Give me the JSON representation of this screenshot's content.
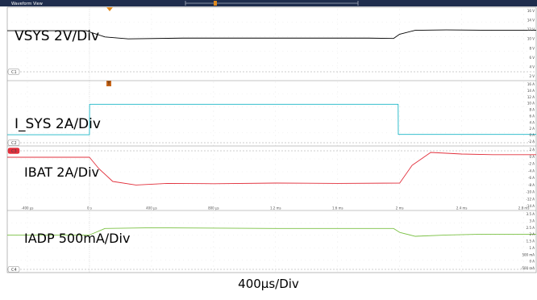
{
  "window": {
    "title": "Waveform View",
    "accent_color": "#1f2d4d"
  },
  "footer": {
    "time_per_div": "400µs/Div"
  },
  "time_axis": {
    "tick_labels": [
      "-400 µs",
      "0 s",
      "400 µs",
      "800 µs",
      "1.2 ms",
      "1.6 ms",
      "2 ms",
      "2.4 ms",
      "2.8 ms"
    ],
    "ticks_us": [
      -400,
      0,
      400,
      800,
      1200,
      1600,
      2000,
      2400,
      2800
    ],
    "range_us": [
      -530,
      2880
    ]
  },
  "chart_data": [
    {
      "type": "line",
      "title": "VSYS 2V/Div",
      "channel_tag": "C1",
      "color": "#000000",
      "y_scale_labels": [
        "16 V",
        "14 V",
        "12 V",
        "10 V",
        "8 V",
        "6 V",
        "4 V",
        "2 V"
      ],
      "ylim": [
        0,
        18
      ],
      "x": [
        -530,
        -20,
        0,
        100,
        250,
        600,
        1200,
        1800,
        1960,
        2000,
        2100,
        2300,
        2600,
        2880
      ],
      "series": [
        {
          "values": [
            12.4,
            12.4,
            12.1,
            10.8,
            10.3,
            10.5,
            10.5,
            10.5,
            10.4,
            11.5,
            12.5,
            12.6,
            12.5,
            12.5
          ]
        }
      ]
    },
    {
      "type": "line",
      "title": "I_SYS 2A/Div",
      "channel_tag": "C2",
      "color": "#19b6c6",
      "y_scale_labels": [
        "16 A",
        "14 A",
        "12 A",
        "10 A",
        "8 A",
        "6 A",
        "4 A",
        "2 A",
        "0 A",
        "-2 A"
      ],
      "ylim": [
        -3,
        17
      ],
      "x": [
        -530,
        0,
        1,
        1990,
        1991,
        2880
      ],
      "series": [
        {
          "values": [
            0.1,
            0.1,
            9.9,
            9.9,
            0.2,
            0.2
          ]
        }
      ]
    },
    {
      "type": "line",
      "title": "IBAT 2A/Div",
      "channel_tag": "C3",
      "color": "#e2303c",
      "y_scale_labels": [
        "2 A",
        "0 A",
        "-2 A",
        "-4 A",
        "-6 A",
        "-8 A",
        "-10 A",
        "-12 A",
        "-14 A"
      ],
      "ylim": [
        -16,
        3
      ],
      "x": [
        -530,
        0,
        60,
        150,
        300,
        500,
        800,
        1200,
        1600,
        2000,
        2080,
        2200,
        2400,
        2600,
        2880
      ],
      "series": [
        {
          "values": [
            0.0,
            0.0,
            -3.5,
            -7.5,
            -8.6,
            -8.1,
            -8.2,
            -8.0,
            -8.1,
            -8.0,
            -2.5,
            1.5,
            1.0,
            0.8,
            0.8
          ]
        }
      ]
    },
    {
      "type": "line",
      "title": "IADP 500mA/Div",
      "channel_tag": "C4",
      "color": "#7ac143",
      "y_scale_labels": [
        "3.5 A",
        "3 A",
        "2.5 A",
        "2 A",
        "1.5 A",
        "1 A",
        "500 mA",
        "0 A",
        "-500 mA"
      ],
      "ylim": [
        -0.7,
        3.8
      ],
      "x": [
        -530,
        0,
        100,
        400,
        1200,
        1960,
        2000,
        2100,
        2300,
        2500,
        2880
      ],
      "series": [
        {
          "values": [
            2.05,
            2.05,
            2.55,
            2.6,
            2.55,
            2.55,
            2.25,
            1.95,
            2.05,
            2.1,
            2.1
          ]
        }
      ]
    }
  ]
}
